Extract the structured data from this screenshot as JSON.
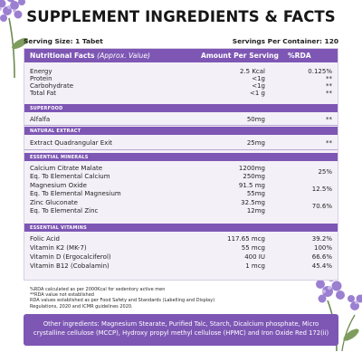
{
  "title": "SUPPLEMENT INGREDIENTS & FACTS",
  "serving_size": "Serving Size: 1 Tabet",
  "servings_per_container": "Servings Per Container: 120",
  "table_header": {
    "col_nutrition_main": "Nutritional Facts",
    "col_nutrition_note": "(Approx. Value)",
    "col_amount": "Amount Per Serving",
    "col_rda": "%RDA"
  },
  "nutrition": [
    {
      "name": "Energy",
      "amount": "2.5 Kcal",
      "rda": "0.125%"
    },
    {
      "name": "Protein",
      "amount": "<1g",
      "rda": "**"
    },
    {
      "name": "Carbohydrate",
      "amount": "<1g",
      "rda": "**"
    },
    {
      "name": "Total Fat",
      "amount": "<1 g",
      "rda": "**"
    }
  ],
  "superfood": {
    "heading": "SUPERFOOD",
    "rows": [
      {
        "name": "Alfalfa",
        "amount": "50mg",
        "rda": "**"
      }
    ]
  },
  "natural_extract": {
    "heading": "NATURAL EXTRACT",
    "rows": [
      {
        "name": "Extract Quadrangular Exit",
        "amount": "25mg",
        "rda": "**"
      }
    ]
  },
  "essential_minerals": {
    "heading": "ESSENTIAL MINERALS",
    "rows": [
      {
        "name": "Calcium Citrate Malate",
        "amount": "1200mg"
      },
      {
        "name": "Eq. To Elemental Calcium",
        "amount": "250mg"
      },
      {
        "name": "Magnesium Oxide",
        "amount": "91.5 mg"
      },
      {
        "name": "Eq. To Elemental Magnesium",
        "amount": "55mg"
      },
      {
        "name": "Zinc Gluconate",
        "amount": "32.5mg"
      },
      {
        "name": "Eq. To Elemental Zinc",
        "amount": "12mg"
      }
    ],
    "rda_values": [
      "25%",
      "12.5%",
      "70.6%"
    ]
  },
  "essential_vitamins": {
    "heading": "ESSENTIAL VITAMINS",
    "rows": [
      {
        "name": "Folic Acid",
        "amount": "117.65 mcg",
        "rda": "39.2%"
      },
      {
        "name": "Vitamin K2 (MK-7)",
        "amount": "55 mcg",
        "rda": "100%"
      },
      {
        "name": "Vitamin D (Ergocalciferol)",
        "amount": "400 IU",
        "rda": "66.6%"
      },
      {
        "name": "Vitamin B12 (Cobalamin)",
        "amount": "1 mcg",
        "rda": "45.4%"
      }
    ]
  },
  "footnotes": [
    "%RDA calculated as per 2000Kcal for sedentory active men",
    "**RDA value not established",
    "RDA values established as per Food Safety and Standards (Labelling and Display)",
    "Regulations, 2020 and ICMR guidelines 2020."
  ],
  "other_ingredients": "Other ingredients: Magnesium Stearate, Purified Talc, Starch, Dicalcium phosphate, Micro crystalline cellulose (MCCP), Hydroxy propyl methyl cellulose (HPMC) and Iron Oxide Red 172(ii)",
  "colors": {
    "accent": "#7e57b4",
    "card_background": "#f4f0f8",
    "divider": "#b9a6d3",
    "flower": "#9b7fd0"
  },
  "icons": [
    "alfalfa-flower-icon"
  ]
}
